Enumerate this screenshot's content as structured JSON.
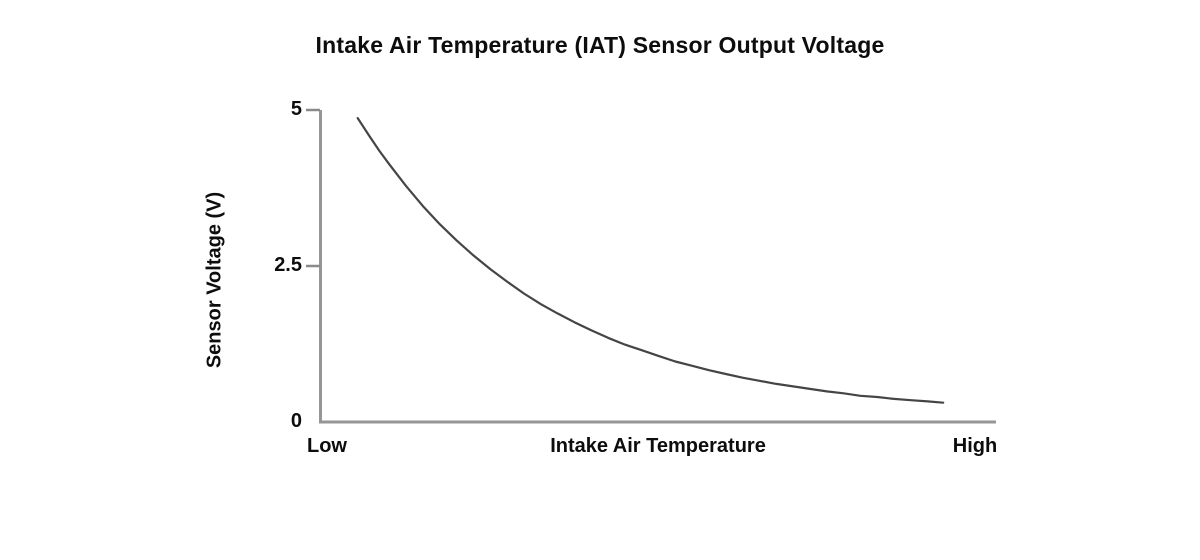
{
  "page": {
    "background_color": "#ffffff",
    "text_color": "#0d0d0d"
  },
  "chart_data": {
    "type": "line",
    "title": "Intake Air Temperature (IAT) Sensor Output Voltage",
    "xlabel": "Intake Air Temperature",
    "ylabel": "Sensor Voltage (V)",
    "grid": false,
    "legend": "none",
    "x_axis": {
      "kind": "qualitative",
      "end_labels": [
        "Low",
        "High"
      ]
    },
    "y_axis": {
      "range": [
        0,
        5
      ],
      "ticks": [
        5,
        2.5,
        0
      ],
      "tick_labels": [
        "5",
        "2.5",
        "0"
      ]
    },
    "series": [
      {
        "name": "IAT sensor output voltage",
        "shape": "exponential-decay",
        "description": "Sensor voltage falls from about 4.9 V at low intake air temperature toward about 0.3 V at high temperature",
        "points": [
          [
            0.053,
            4.87
          ],
          [
            0.07,
            4.59
          ],
          [
            0.085,
            4.35
          ],
          [
            0.1,
            4.13
          ],
          [
            0.125,
            3.78
          ],
          [
            0.15,
            3.46
          ],
          [
            0.175,
            3.17
          ],
          [
            0.2,
            2.91
          ],
          [
            0.225,
            2.67
          ],
          [
            0.25,
            2.45
          ],
          [
            0.275,
            2.25
          ],
          [
            0.3,
            2.06
          ],
          [
            0.325,
            1.89
          ],
          [
            0.35,
            1.74
          ],
          [
            0.375,
            1.6
          ],
          [
            0.4,
            1.47
          ],
          [
            0.425,
            1.35
          ],
          [
            0.45,
            1.24
          ],
          [
            0.475,
            1.15
          ],
          [
            0.5,
            1.06
          ],
          [
            0.525,
            0.97
          ],
          [
            0.55,
            0.9
          ],
          [
            0.575,
            0.83
          ],
          [
            0.6,
            0.77
          ],
          [
            0.625,
            0.71
          ],
          [
            0.65,
            0.66
          ],
          [
            0.675,
            0.61
          ],
          [
            0.7,
            0.57
          ],
          [
            0.725,
            0.53
          ],
          [
            0.75,
            0.49
          ],
          [
            0.775,
            0.46
          ],
          [
            0.8,
            0.42
          ],
          [
            0.825,
            0.4
          ],
          [
            0.85,
            0.37
          ],
          [
            0.875,
            0.35
          ],
          [
            0.9,
            0.33
          ],
          [
            0.923,
            0.31
          ]
        ]
      }
    ],
    "colors": {
      "curve": "#454545",
      "axis": "#969696",
      "tick": "#8a8a8a",
      "text": "#0d0d0d"
    }
  }
}
